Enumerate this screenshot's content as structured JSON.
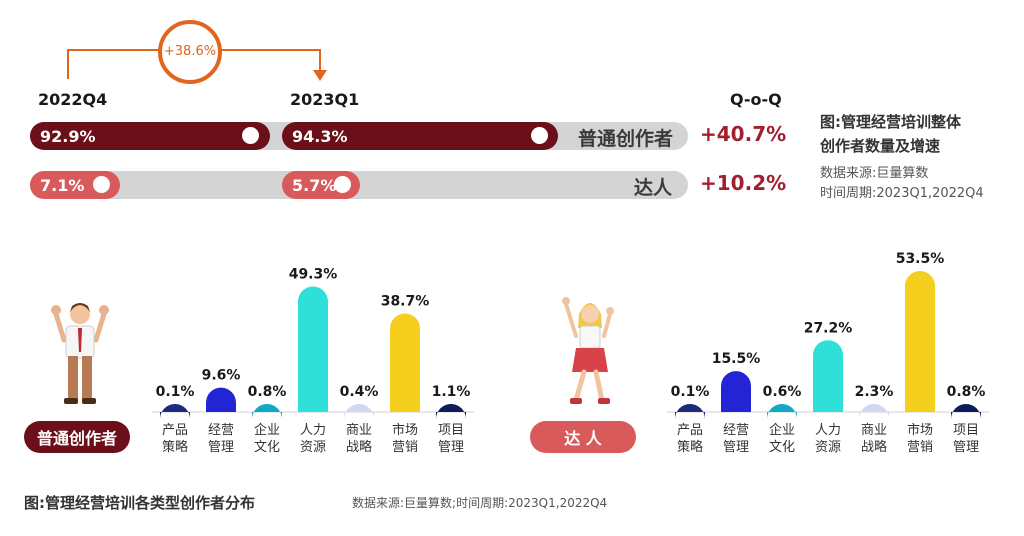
{
  "top": {
    "growth_label": "+38.6%",
    "period_left": "2022Q4",
    "period_right": "2023Q1",
    "qoq_header": "Q-o-Q",
    "rows": [
      {
        "name": "普通创作者",
        "left_value": "92.9%",
        "right_value": "94.3%",
        "qoq": "+40.7%",
        "color": "#6b0f1a"
      },
      {
        "name": "达人",
        "left_value": "7.1%",
        "right_value": "5.7%",
        "qoq": "+10.2%",
        "color": "#d95a5a"
      }
    ]
  },
  "note1": {
    "title_line1": "图:管理经营培训整体",
    "title_line2": "创作者数量及增速",
    "source": "数据来源:巨量算数",
    "period": "时间周期:2023Q1,2022Q4"
  },
  "badges": {
    "ordinary": "普通创作者",
    "expert": "达 人"
  },
  "icons": {
    "ordinary_figure": "man-cheering-icon",
    "expert_figure": "woman-cheering-icon"
  },
  "chart_data": [
    {
      "type": "bar",
      "title": "普通创作者",
      "categories": [
        "产品\n策略",
        "经营\n管理",
        "企业\n文化",
        "人力\n资源",
        "商业\n战略",
        "市场\n营销",
        "项目\n管理"
      ],
      "values": [
        0.1,
        9.6,
        0.8,
        49.3,
        0.4,
        38.7,
        1.1
      ],
      "data_labels": [
        "0.1%",
        "9.6%",
        "0.8%",
        "49.3%",
        "0.4%",
        "38.7%",
        "1.1%"
      ],
      "colors": [
        "#1c2b7a",
        "#2224d6",
        "#12a9c4",
        "#2fe0d8",
        "#cfd8f5",
        "#f5cf1e",
        "#0f1c5c"
      ],
      "ylim": [
        0,
        55
      ]
    },
    {
      "type": "bar",
      "title": "达人",
      "categories": [
        "产品\n策略",
        "经营\n管理",
        "企业\n文化",
        "人力\n资源",
        "商业\n战略",
        "市场\n营销",
        "项目\n管理"
      ],
      "values": [
        0.1,
        15.5,
        0.6,
        27.2,
        2.3,
        53.5,
        0.8
      ],
      "data_labels": [
        "0.1%",
        "15.5%",
        "0.6%",
        "27.2%",
        "2.3%",
        "53.5%",
        "0.8%"
      ],
      "colors": [
        "#1c2b7a",
        "#2224d6",
        "#12a9c4",
        "#2fe0d8",
        "#cfd8f5",
        "#f5cf1e",
        "#0f1c5c"
      ],
      "ylim": [
        0,
        55
      ]
    }
  ],
  "footer": {
    "caption": "图:管理经营培训各类型创作者分布",
    "source": "数据来源:巨量算数;时间周期:2023Q1,2022Q4"
  }
}
